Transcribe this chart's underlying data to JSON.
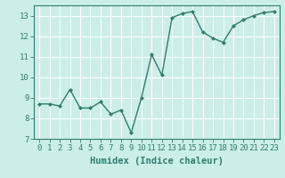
{
  "x": [
    0,
    1,
    2,
    3,
    4,
    5,
    6,
    7,
    8,
    9,
    10,
    11,
    12,
    13,
    14,
    15,
    16,
    17,
    18,
    19,
    20,
    21,
    22,
    23
  ],
  "y": [
    8.7,
    8.7,
    8.6,
    9.4,
    8.5,
    8.5,
    8.8,
    8.2,
    8.4,
    7.3,
    9.0,
    11.1,
    10.1,
    12.9,
    13.1,
    13.2,
    12.2,
    11.9,
    11.7,
    12.5,
    12.8,
    13.0,
    13.15,
    13.2
  ],
  "line_color": "#2e7d6e",
  "marker": "D",
  "marker_size": 2.0,
  "bg_color": "#cceee8",
  "grid_color": "#ffffff",
  "grid_color_minor": "#ddf0ec",
  "xlabel": "Humidex (Indice chaleur)",
  "xlim": [
    -0.5,
    23.5
  ],
  "ylim": [
    7,
    13.5
  ],
  "yticks": [
    7,
    8,
    9,
    10,
    11,
    12,
    13
  ],
  "xticks": [
    0,
    1,
    2,
    3,
    4,
    5,
    6,
    7,
    8,
    9,
    10,
    11,
    12,
    13,
    14,
    15,
    16,
    17,
    18,
    19,
    20,
    21,
    22,
    23
  ],
  "xtick_labels": [
    "0",
    "1",
    "2",
    "3",
    "4",
    "5",
    "6",
    "7",
    "8",
    "9",
    "10",
    "11",
    "12",
    "13",
    "14",
    "15",
    "16",
    "17",
    "18",
    "19",
    "20",
    "21",
    "22",
    "23"
  ],
  "tick_fontsize": 6.5,
  "xlabel_fontsize": 7.5,
  "line_width": 1.0
}
